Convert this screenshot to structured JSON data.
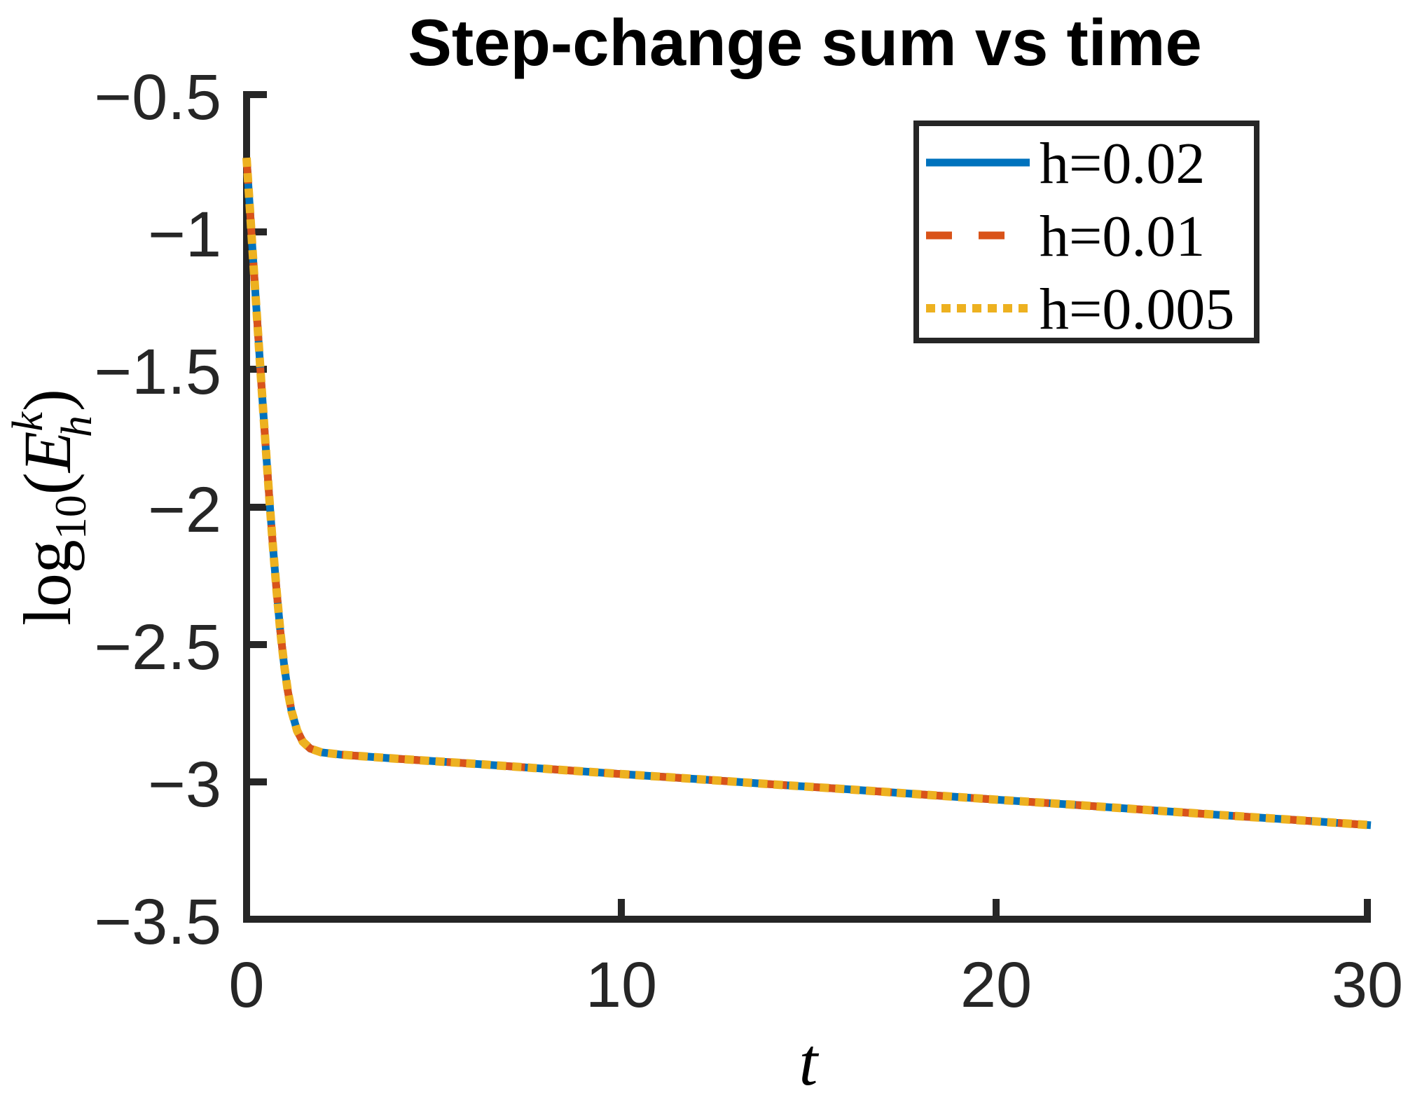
{
  "figure": {
    "title": "Step-change sum vs time",
    "background": "#ffffff",
    "title_color": "#000000",
    "tick_text_color": "#262626",
    "axis_color": "#262626"
  },
  "axes": {
    "x": {
      "label": "t",
      "lim": [
        0,
        30
      ],
      "ticks": [
        {
          "value": 0,
          "label": "0"
        },
        {
          "value": 10,
          "label": "10"
        },
        {
          "value": 20,
          "label": "20"
        },
        {
          "value": 30,
          "label": "30"
        }
      ]
    },
    "y": {
      "label_plain": "log10(E_h^k)",
      "label_parts": {
        "func": "log",
        "base": "10",
        "open": "(",
        "variable": "E",
        "superscript": "k",
        "subscript": "h",
        "close": ")"
      },
      "lim": [
        -3.5,
        -0.5
      ],
      "ticks": [
        {
          "value": -0.5,
          "label": "−0.5"
        },
        {
          "value": -1,
          "label": "−1"
        },
        {
          "value": -1.5,
          "label": "−1.5"
        },
        {
          "value": -2,
          "label": "−2"
        },
        {
          "value": -2.5,
          "label": "−2.5"
        },
        {
          "value": -3,
          "label": "−3"
        },
        {
          "value": -3.5,
          "label": "−3.5"
        }
      ]
    }
  },
  "legend": {
    "position": "top-right",
    "border_color": "#262626",
    "background": "#ffffff",
    "entries": [
      {
        "label": "h=0.02"
      },
      {
        "label": "h=0.01"
      },
      {
        "label": "h=0.005"
      }
    ]
  },
  "chart_data": {
    "type": "line",
    "title": "Step-change sum vs time",
    "xlabel": "t",
    "ylabel": "log10(E_h^k)",
    "xlim": [
      0,
      30
    ],
    "ylim": [
      -3.5,
      -0.5
    ],
    "grid": false,
    "legend_position": "top-right",
    "note": "All three series coincide visually: steep initial decay from about -0.73 to a knee near (2, -2.89), then a slow linear decrease to about -3.16 at t=30.",
    "x": [
      0,
      0.05,
      0.1,
      0.15,
      0.2,
      0.3,
      0.4,
      0.5,
      0.6,
      0.7,
      0.8,
      0.9,
      1.0,
      1.1,
      1.2,
      1.35,
      1.5,
      1.7,
      2.0,
      2.5,
      3,
      4,
      5,
      6,
      8,
      10,
      12,
      14,
      16,
      18,
      20,
      22,
      24,
      26,
      28,
      30
    ],
    "series": [
      {
        "name": "h=0.02",
        "color": "#0072BD",
        "style": "solid",
        "values": [
          -0.73,
          -0.836,
          -0.941,
          -1.046,
          -1.15,
          -1.358,
          -1.563,
          -1.763,
          -1.955,
          -2.137,
          -2.303,
          -2.45,
          -2.573,
          -2.67,
          -2.743,
          -2.814,
          -2.854,
          -2.879,
          -2.893,
          -2.901,
          -2.906,
          -2.916,
          -2.925,
          -2.934,
          -2.953,
          -2.972,
          -2.99,
          -3.009,
          -3.027,
          -3.046,
          -3.065,
          -3.083,
          -3.102,
          -3.121,
          -3.139,
          -3.158
        ]
      },
      {
        "name": "h=0.01",
        "color": "#D95319",
        "style": "dashed",
        "values": [
          -0.73,
          -0.836,
          -0.941,
          -1.046,
          -1.15,
          -1.358,
          -1.563,
          -1.763,
          -1.955,
          -2.137,
          -2.303,
          -2.45,
          -2.573,
          -2.67,
          -2.743,
          -2.814,
          -2.854,
          -2.879,
          -2.893,
          -2.901,
          -2.906,
          -2.916,
          -2.925,
          -2.934,
          -2.953,
          -2.972,
          -2.99,
          -3.009,
          -3.027,
          -3.046,
          -3.065,
          -3.083,
          -3.102,
          -3.121,
          -3.139,
          -3.158
        ]
      },
      {
        "name": "h=0.005",
        "color": "#EDB120",
        "style": "dotted",
        "values": [
          -0.73,
          -0.836,
          -0.941,
          -1.046,
          -1.15,
          -1.358,
          -1.563,
          -1.763,
          -1.955,
          -2.137,
          -2.303,
          -2.45,
          -2.573,
          -2.67,
          -2.743,
          -2.814,
          -2.854,
          -2.879,
          -2.893,
          -2.901,
          -2.906,
          -2.916,
          -2.925,
          -2.934,
          -2.953,
          -2.972,
          -2.99,
          -3.009,
          -3.027,
          -3.046,
          -3.065,
          -3.083,
          -3.102,
          -3.121,
          -3.139,
          -3.158
        ]
      }
    ]
  }
}
